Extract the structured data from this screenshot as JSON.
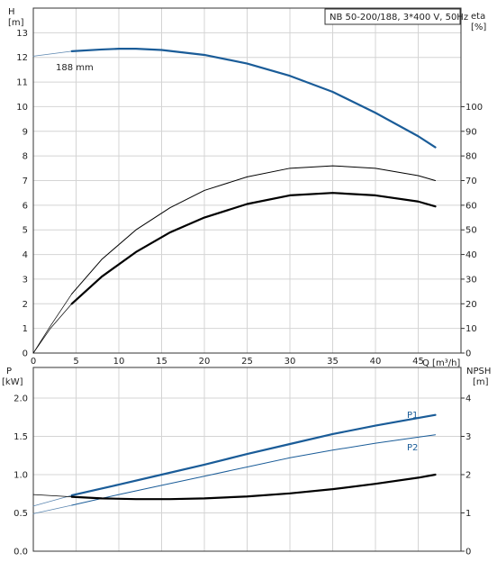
{
  "title": "NB 50-200/188, 3*400 V, 50Hz",
  "chart_data": [
    {
      "type": "line",
      "name": "head_efficiency",
      "x_axis": {
        "label": "Q [m³/h]",
        "ticks": [
          0,
          5,
          10,
          15,
          20,
          25,
          30,
          35,
          40,
          45
        ],
        "range": [
          0,
          50
        ]
      },
      "y_left": {
        "label": "H",
        "unit": "[m]",
        "ticks": [
          0,
          1,
          2,
          3,
          4,
          5,
          6,
          7,
          8,
          9,
          10,
          11,
          12,
          13
        ],
        "range": [
          0,
          14
        ]
      },
      "y_right": {
        "label": "eta",
        "unit": "[%]",
        "ticks": [
          0,
          10,
          20,
          30,
          40,
          50,
          60,
          70,
          80,
          90,
          100
        ],
        "range": [
          0,
          140
        ]
      },
      "grid": true,
      "annotations": [
        {
          "text": "188 mm"
        }
      ],
      "series": [
        {
          "key": "H_ext",
          "axis": "left",
          "color": "#5b86b0",
          "width": 0.8,
          "x": [
            0,
            4.5
          ],
          "y": [
            12.05,
            12.25
          ]
        },
        {
          "key": "H",
          "axis": "left",
          "color": "#1a5c98",
          "width": 2.2,
          "x": [
            4.5,
            8,
            10,
            12,
            15,
            20,
            25,
            30,
            35,
            40,
            45,
            47
          ],
          "y": [
            12.25,
            12.32,
            12.35,
            12.35,
            12.3,
            12.1,
            11.75,
            11.25,
            10.6,
            9.75,
            8.8,
            8.35
          ]
        },
        {
          "key": "eta_total_ext",
          "axis": "right",
          "color": "#000000",
          "width": 0.7,
          "x": [
            0,
            2,
            4.5
          ],
          "y": [
            0,
            11,
            24
          ]
        },
        {
          "key": "eta_total",
          "axis": "right",
          "color": "#000000",
          "width": 1.0,
          "x": [
            4.5,
            8,
            12,
            16,
            20,
            25,
            30,
            35,
            40,
            45,
            47
          ],
          "y": [
            24,
            38,
            50,
            59,
            66,
            71.5,
            75,
            76,
            75,
            72,
            70
          ]
        },
        {
          "key": "eta_pump_ext",
          "axis": "right",
          "color": "#000000",
          "width": 0.7,
          "x": [
            0,
            2,
            4.5
          ],
          "y": [
            0,
            10,
            20
          ]
        },
        {
          "key": "eta_pump",
          "axis": "right",
          "color": "#000000",
          "width": 2.2,
          "x": [
            4.5,
            8,
            12,
            16,
            20,
            25,
            30,
            35,
            40,
            45,
            47
          ],
          "y": [
            20,
            31,
            41,
            49,
            55,
            60.5,
            64,
            65,
            64,
            61.5,
            59.5
          ]
        }
      ]
    },
    {
      "type": "line",
      "name": "power_npsh",
      "x_axis": {
        "ticks": [
          0,
          5,
          10,
          15,
          20,
          25,
          30,
          35,
          40,
          45
        ],
        "range": [
          0,
          50
        ]
      },
      "y_left": {
        "label": "P",
        "unit": "[kW]",
        "ticks": [
          "0.0",
          "0.5",
          "1.0",
          "1.5",
          "2.0"
        ],
        "range": [
          0,
          2.4
        ]
      },
      "y_right": {
        "label": "NPSH",
        "unit": "[m]",
        "ticks": [
          "0",
          "1",
          "2",
          "3",
          "4"
        ],
        "range": [
          0,
          4.8
        ]
      },
      "grid": true,
      "series": [
        {
          "key": "P1_ext",
          "axis": "left",
          "color": "#5b86b0",
          "width": 0.8,
          "x": [
            0,
            4.5
          ],
          "y": [
            0.59,
            0.73
          ]
        },
        {
          "key": "P1",
          "name": "P1",
          "axis": "left",
          "color": "#1a5c98",
          "width": 2.2,
          "x": [
            4.5,
            10,
            15,
            20,
            25,
            30,
            35,
            40,
            45,
            47
          ],
          "y": [
            0.73,
            0.87,
            1.0,
            1.13,
            1.27,
            1.4,
            1.53,
            1.64,
            1.74,
            1.78
          ]
        },
        {
          "key": "P2_ext",
          "axis": "left",
          "color": "#5b86b0",
          "width": 0.8,
          "x": [
            0,
            4.5
          ],
          "y": [
            0.49,
            0.6
          ]
        },
        {
          "key": "P2",
          "name": "P2",
          "axis": "left",
          "color": "#1a5c98",
          "width": 1.0,
          "x": [
            4.5,
            10,
            15,
            20,
            25,
            30,
            35,
            40,
            45,
            47
          ],
          "y": [
            0.6,
            0.74,
            0.86,
            0.98,
            1.1,
            1.22,
            1.32,
            1.41,
            1.49,
            1.52
          ]
        },
        {
          "key": "NPSH_ext",
          "axis": "right",
          "color": "#000000",
          "width": 0.7,
          "x": [
            0,
            4.5
          ],
          "y": [
            1.48,
            1.42
          ]
        },
        {
          "key": "NPSH",
          "axis": "right",
          "color": "#000000",
          "width": 2.2,
          "x": [
            4.5,
            8,
            12,
            16,
            20,
            25,
            30,
            35,
            40,
            45,
            47
          ],
          "y": [
            1.42,
            1.38,
            1.36,
            1.36,
            1.38,
            1.43,
            1.51,
            1.62,
            1.76,
            1.92,
            2.0
          ]
        }
      ]
    }
  ]
}
